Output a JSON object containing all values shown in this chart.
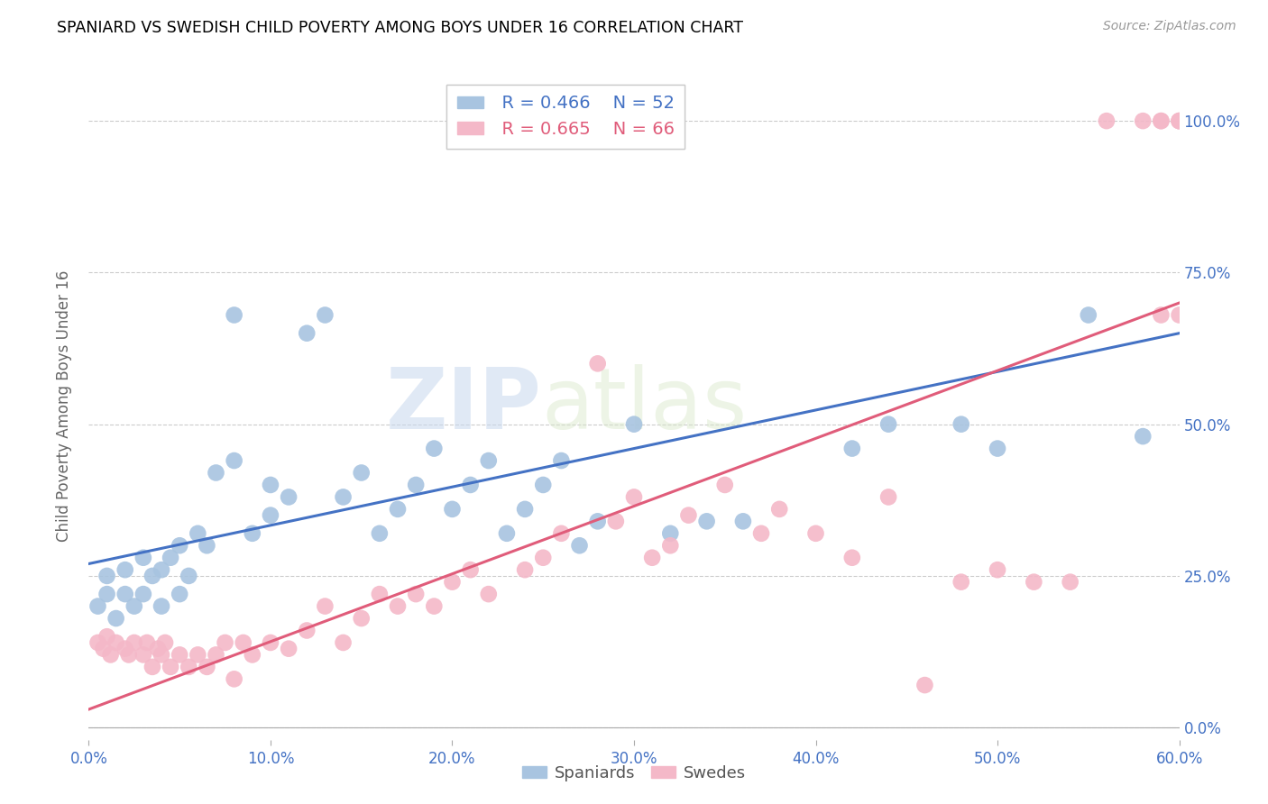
{
  "title": "SPANIARD VS SWEDISH CHILD POVERTY AMONG BOYS UNDER 16 CORRELATION CHART",
  "source": "Source: ZipAtlas.com",
  "ylabel": "Child Poverty Among Boys Under 16",
  "xlabel_ticks": [
    "0.0%",
    "10.0%",
    "20.0%",
    "30.0%",
    "40.0%",
    "50.0%",
    "60.0%"
  ],
  "xlabel_vals": [
    0.0,
    0.1,
    0.2,
    0.3,
    0.4,
    0.5,
    0.6
  ],
  "ylabel_ticks": [
    "0.0%",
    "25.0%",
    "50.0%",
    "75.0%",
    "100.0%"
  ],
  "ylabel_vals": [
    0.0,
    0.25,
    0.5,
    0.75,
    1.0
  ],
  "xlim": [
    0.0,
    0.6
  ],
  "ylim": [
    -0.02,
    1.08
  ],
  "blue_R": 0.466,
  "blue_N": 52,
  "pink_R": 0.665,
  "pink_N": 66,
  "blue_color": "#a8c4e0",
  "pink_color": "#f4b8c8",
  "blue_line_color": "#4472c4",
  "pink_line_color": "#e05c7a",
  "watermark_zip": "ZIP",
  "watermark_atlas": "atlas",
  "blue_scatter_x": [
    0.005,
    0.01,
    0.01,
    0.015,
    0.02,
    0.02,
    0.025,
    0.03,
    0.03,
    0.035,
    0.04,
    0.04,
    0.045,
    0.05,
    0.05,
    0.055,
    0.06,
    0.065,
    0.07,
    0.08,
    0.08,
    0.09,
    0.1,
    0.1,
    0.11,
    0.12,
    0.13,
    0.14,
    0.15,
    0.16,
    0.17,
    0.18,
    0.19,
    0.2,
    0.21,
    0.22,
    0.23,
    0.24,
    0.25,
    0.26,
    0.27,
    0.28,
    0.3,
    0.32,
    0.34,
    0.36,
    0.42,
    0.44,
    0.48,
    0.5,
    0.55,
    0.58
  ],
  "blue_scatter_y": [
    0.2,
    0.22,
    0.25,
    0.18,
    0.22,
    0.26,
    0.2,
    0.22,
    0.28,
    0.25,
    0.2,
    0.26,
    0.28,
    0.22,
    0.3,
    0.25,
    0.32,
    0.3,
    0.42,
    0.44,
    0.68,
    0.32,
    0.35,
    0.4,
    0.38,
    0.65,
    0.68,
    0.38,
    0.42,
    0.32,
    0.36,
    0.4,
    0.46,
    0.36,
    0.4,
    0.44,
    0.32,
    0.36,
    0.4,
    0.44,
    0.3,
    0.34,
    0.5,
    0.32,
    0.34,
    0.34,
    0.46,
    0.5,
    0.5,
    0.46,
    0.68,
    0.48
  ],
  "pink_scatter_x": [
    0.005,
    0.008,
    0.01,
    0.012,
    0.015,
    0.02,
    0.022,
    0.025,
    0.03,
    0.032,
    0.035,
    0.038,
    0.04,
    0.042,
    0.045,
    0.05,
    0.055,
    0.06,
    0.065,
    0.07,
    0.075,
    0.08,
    0.085,
    0.09,
    0.1,
    0.11,
    0.12,
    0.13,
    0.14,
    0.15,
    0.16,
    0.17,
    0.18,
    0.19,
    0.2,
    0.21,
    0.22,
    0.24,
    0.25,
    0.26,
    0.28,
    0.29,
    0.3,
    0.31,
    0.32,
    0.33,
    0.35,
    0.37,
    0.38,
    0.4,
    0.42,
    0.44,
    0.46,
    0.48,
    0.5,
    0.52,
    0.54,
    0.56,
    0.58,
    0.59,
    0.59,
    0.59,
    0.6,
    0.6,
    0.6,
    0.6
  ],
  "pink_scatter_y": [
    0.14,
    0.13,
    0.15,
    0.12,
    0.14,
    0.13,
    0.12,
    0.14,
    0.12,
    0.14,
    0.1,
    0.13,
    0.12,
    0.14,
    0.1,
    0.12,
    0.1,
    0.12,
    0.1,
    0.12,
    0.14,
    0.08,
    0.14,
    0.12,
    0.14,
    0.13,
    0.16,
    0.2,
    0.14,
    0.18,
    0.22,
    0.2,
    0.22,
    0.2,
    0.24,
    0.26,
    0.22,
    0.26,
    0.28,
    0.32,
    0.6,
    0.34,
    0.38,
    0.28,
    0.3,
    0.35,
    0.4,
    0.32,
    0.36,
    0.32,
    0.28,
    0.38,
    0.07,
    0.24,
    0.26,
    0.24,
    0.24,
    1.0,
    1.0,
    1.0,
    0.68,
    1.0,
    1.0,
    0.68,
    1.0,
    1.0
  ]
}
